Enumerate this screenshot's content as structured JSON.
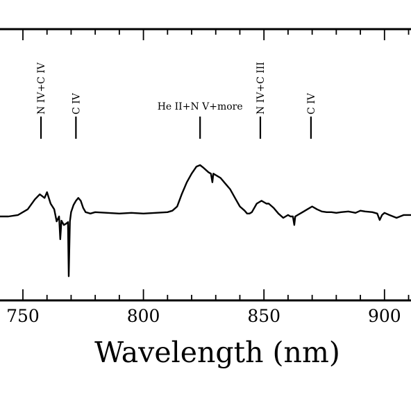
{
  "chart_data": {
    "type": "line",
    "title": "",
    "xlabel": "Wavelength (nm)",
    "ylabel": "",
    "xlim": [
      740.5,
      911
    ],
    "ylim": [
      -1.0,
      1.0
    ],
    "grid": false,
    "legend": "none",
    "x_ticks": [
      {
        "value": 750,
        "label": "750"
      },
      {
        "value": 800,
        "label": "800"
      },
      {
        "value": 850,
        "label": "850"
      },
      {
        "value": 900,
        "label": "900"
      }
    ],
    "line_identifications": [
      {
        "label": "N IV+C IV",
        "wavelength": 757.5,
        "orientation": "vertical"
      },
      {
        "label": "C IV",
        "wavelength": 772.0,
        "orientation": "vertical"
      },
      {
        "label": "He II+N V+more",
        "wavelength": 823.5,
        "orientation": "horizontal"
      },
      {
        "label": "N IV+C III",
        "wavelength": 848.5,
        "orientation": "vertical"
      },
      {
        "label": "C IV",
        "wavelength": 869.5,
        "orientation": "vertical"
      }
    ],
    "series": [
      {
        "color": "#000000",
        "x": [
          740.5,
          744,
          748,
          752,
          755,
          757,
          759,
          760,
          761.5,
          763,
          764,
          765,
          765.5,
          766,
          767,
          768,
          768.7,
          769,
          769.5,
          770,
          771,
          772,
          773,
          774,
          775,
          776,
          778,
          780,
          785,
          790,
          795,
          800,
          805,
          810,
          812,
          814,
          816,
          818,
          820,
          822,
          823.5,
          825,
          827,
          828,
          828.6,
          829,
          830,
          832,
          834,
          836,
          838,
          840,
          842,
          843,
          844,
          845,
          847,
          849,
          851,
          852,
          854,
          856,
          858,
          860,
          861,
          862,
          862.6,
          863,
          864,
          866,
          868,
          870,
          872,
          874,
          876,
          878,
          880,
          882,
          885,
          888,
          890,
          892,
          895,
          897,
          898,
          899,
          900,
          902,
          905,
          908,
          911
        ],
        "y": [
          0.12,
          0.12,
          0.14,
          0.22,
          0.36,
          0.43,
          0.38,
          0.46,
          0.3,
          0.22,
          0.05,
          0.12,
          -0.2,
          0.06,
          0.0,
          0.02,
          0.04,
          -0.72,
          0.05,
          0.18,
          0.28,
          0.34,
          0.38,
          0.34,
          0.24,
          0.18,
          0.16,
          0.18,
          0.17,
          0.16,
          0.17,
          0.16,
          0.17,
          0.18,
          0.2,
          0.26,
          0.44,
          0.6,
          0.72,
          0.82,
          0.84,
          0.8,
          0.74,
          0.72,
          0.6,
          0.72,
          0.7,
          0.66,
          0.58,
          0.5,
          0.38,
          0.26,
          0.2,
          0.16,
          0.16,
          0.18,
          0.3,
          0.34,
          0.3,
          0.3,
          0.24,
          0.16,
          0.1,
          0.14,
          0.12,
          0.12,
          0.0,
          0.12,
          0.14,
          0.18,
          0.22,
          0.26,
          0.22,
          0.19,
          0.18,
          0.18,
          0.17,
          0.18,
          0.19,
          0.17,
          0.2,
          0.19,
          0.18,
          0.16,
          0.07,
          0.14,
          0.17,
          0.14,
          0.1,
          0.14,
          0.14
        ]
      }
    ]
  }
}
